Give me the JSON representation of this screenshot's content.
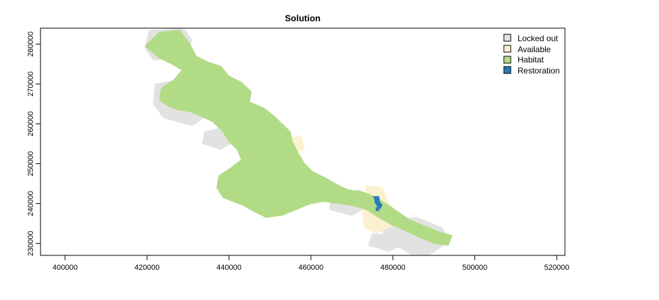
{
  "chart_data": {
    "type": "heatmap",
    "title": "Solution",
    "xlabel": "",
    "ylabel": "",
    "xlim": [
      394000,
      522000
    ],
    "ylim": [
      227000,
      284000
    ],
    "x_ticks": [
      400000,
      420000,
      440000,
      460000,
      480000,
      500000,
      520000
    ],
    "y_ticks": [
      230000,
      240000,
      250000,
      260000,
      270000,
      280000
    ],
    "legend_position": "top-right",
    "categories": [
      {
        "name": "Locked out",
        "color": "#e2e2e2"
      },
      {
        "name": "Available",
        "color": "#fbf0cf"
      },
      {
        "name": "Habitat",
        "color": "#b2db86"
      },
      {
        "name": "Restoration",
        "color": "#2a7bb8"
      }
    ],
    "regions": {
      "locked_out": [
        [
          [
            420500,
            283500
          ],
          [
            429000,
            284000
          ],
          [
            431000,
            281000
          ],
          [
            429500,
            276500
          ],
          [
            421500,
            276000
          ],
          [
            419500,
            279000
          ]
        ],
        [
          [
            422000,
            270000
          ],
          [
            430000,
            271500
          ],
          [
            434000,
            268000
          ],
          [
            436000,
            263000
          ],
          [
            431000,
            259500
          ],
          [
            424000,
            261500
          ],
          [
            421500,
            265000
          ]
        ],
        [
          [
            434000,
            258000
          ],
          [
            440000,
            259500
          ],
          [
            442000,
            256000
          ],
          [
            438000,
            253500
          ],
          [
            433500,
            255000
          ]
        ],
        [
          [
            446000,
            257000
          ],
          [
            452000,
            258500
          ],
          [
            455000,
            254000
          ],
          [
            450000,
            251000
          ],
          [
            445000,
            252500
          ]
        ],
        [
          [
            465000,
            242000
          ],
          [
            472000,
            243500
          ],
          [
            475500,
            240000
          ],
          [
            470000,
            237000
          ],
          [
            464500,
            238500
          ]
        ],
        [
          [
            478500,
            236000
          ],
          [
            486000,
            236500
          ],
          [
            492000,
            234000
          ],
          [
            494000,
            230500
          ],
          [
            489000,
            227200
          ],
          [
            484500,
            227200
          ],
          [
            479000,
            230500
          ],
          [
            477000,
            233500
          ]
        ],
        [
          [
            475000,
            232500
          ],
          [
            480000,
            232000
          ],
          [
            482500,
            229500
          ],
          [
            479000,
            228000
          ],
          [
            474000,
            229500
          ]
        ]
      ],
      "available": [
        [
          [
            424500,
            280500
          ],
          [
            427000,
            281000
          ],
          [
            428000,
            278500
          ],
          [
            425500,
            277500
          ]
        ],
        [
          [
            433000,
            269500
          ],
          [
            436500,
            270000
          ],
          [
            437500,
            266500
          ],
          [
            434000,
            266000
          ]
        ],
        [
          [
            445000,
            252000
          ],
          [
            448500,
            252500
          ],
          [
            449500,
            248500
          ],
          [
            445500,
            248000
          ]
        ],
        [
          [
            454000,
            256000
          ],
          [
            457500,
            257000
          ],
          [
            458500,
            253500
          ],
          [
            455000,
            252500
          ]
        ],
        [
          [
            457000,
            243000
          ],
          [
            460500,
            244000
          ],
          [
            461500,
            240000
          ],
          [
            458000,
            239500
          ]
        ],
        [
          [
            473500,
            244500
          ],
          [
            477500,
            244000
          ],
          [
            479000,
            240000
          ],
          [
            481000,
            238000
          ],
          [
            480000,
            234500
          ],
          [
            476000,
            232500
          ],
          [
            473000,
            234000
          ],
          [
            472500,
            238500
          ]
        ],
        [
          [
            448000,
            246000
          ],
          [
            450500,
            246500
          ],
          [
            451000,
            243500
          ],
          [
            448500,
            243000
          ]
        ]
      ],
      "habitat": [
        [
          [
            419500,
            279500
          ],
          [
            423000,
            283000
          ],
          [
            428000,
            283500
          ],
          [
            430500,
            280000
          ],
          [
            432000,
            277000
          ],
          [
            435000,
            275500
          ],
          [
            438000,
            274500
          ],
          [
            440000,
            272000
          ],
          [
            443000,
            270500
          ],
          [
            445500,
            268000
          ],
          [
            445000,
            265500
          ],
          [
            448500,
            264000
          ],
          [
            451000,
            262000
          ],
          [
            453000,
            260000
          ],
          [
            455000,
            258000
          ],
          [
            455500,
            255500
          ],
          [
            457000,
            252500
          ],
          [
            458500,
            250000
          ],
          [
            460500,
            248000
          ],
          [
            463500,
            246500
          ],
          [
            466000,
            245000
          ],
          [
            469000,
            243500
          ],
          [
            472500,
            243000
          ],
          [
            475000,
            242000
          ],
          [
            477500,
            240500
          ],
          [
            480500,
            238500
          ],
          [
            484000,
            236000
          ],
          [
            487500,
            234500
          ],
          [
            491000,
            233000
          ],
          [
            494500,
            232000
          ],
          [
            493500,
            229500
          ],
          [
            490000,
            230000
          ],
          [
            486500,
            231500
          ],
          [
            483500,
            233000
          ],
          [
            480000,
            234500
          ],
          [
            476500,
            236500
          ],
          [
            473500,
            238500
          ],
          [
            470000,
            239500
          ],
          [
            466500,
            240000
          ],
          [
            463000,
            240500
          ],
          [
            460000,
            240000
          ],
          [
            456500,
            238500
          ],
          [
            453000,
            237000
          ],
          [
            449000,
            236500
          ],
          [
            446000,
            238000
          ],
          [
            443500,
            239500
          ],
          [
            441000,
            240500
          ],
          [
            438500,
            241500
          ],
          [
            437000,
            244000
          ],
          [
            437500,
            247000
          ],
          [
            440500,
            249000
          ],
          [
            443000,
            251000
          ],
          [
            442000,
            253500
          ],
          [
            440000,
            255500
          ],
          [
            438500,
            258000
          ],
          [
            436000,
            260500
          ],
          [
            433000,
            262000
          ],
          [
            430500,
            263000
          ],
          [
            427500,
            263500
          ],
          [
            425000,
            264500
          ],
          [
            423000,
            266000
          ],
          [
            423500,
            269000
          ],
          [
            426500,
            271000
          ],
          [
            428500,
            273500
          ],
          [
            426000,
            275000
          ],
          [
            423000,
            276500
          ]
        ]
      ],
      "restoration": [
        [
          [
            475200,
            241800
          ],
          [
            476600,
            241800
          ],
          [
            476800,
            240400
          ],
          [
            477400,
            239600
          ],
          [
            476900,
            238700
          ],
          [
            476200,
            239300
          ],
          [
            475600,
            240400
          ],
          [
            475500,
            241300
          ]
        ],
        [
          [
            475900,
            239000
          ],
          [
            476600,
            239000
          ],
          [
            476600,
            238200
          ],
          [
            475900,
            238200
          ]
        ]
      ]
    }
  }
}
